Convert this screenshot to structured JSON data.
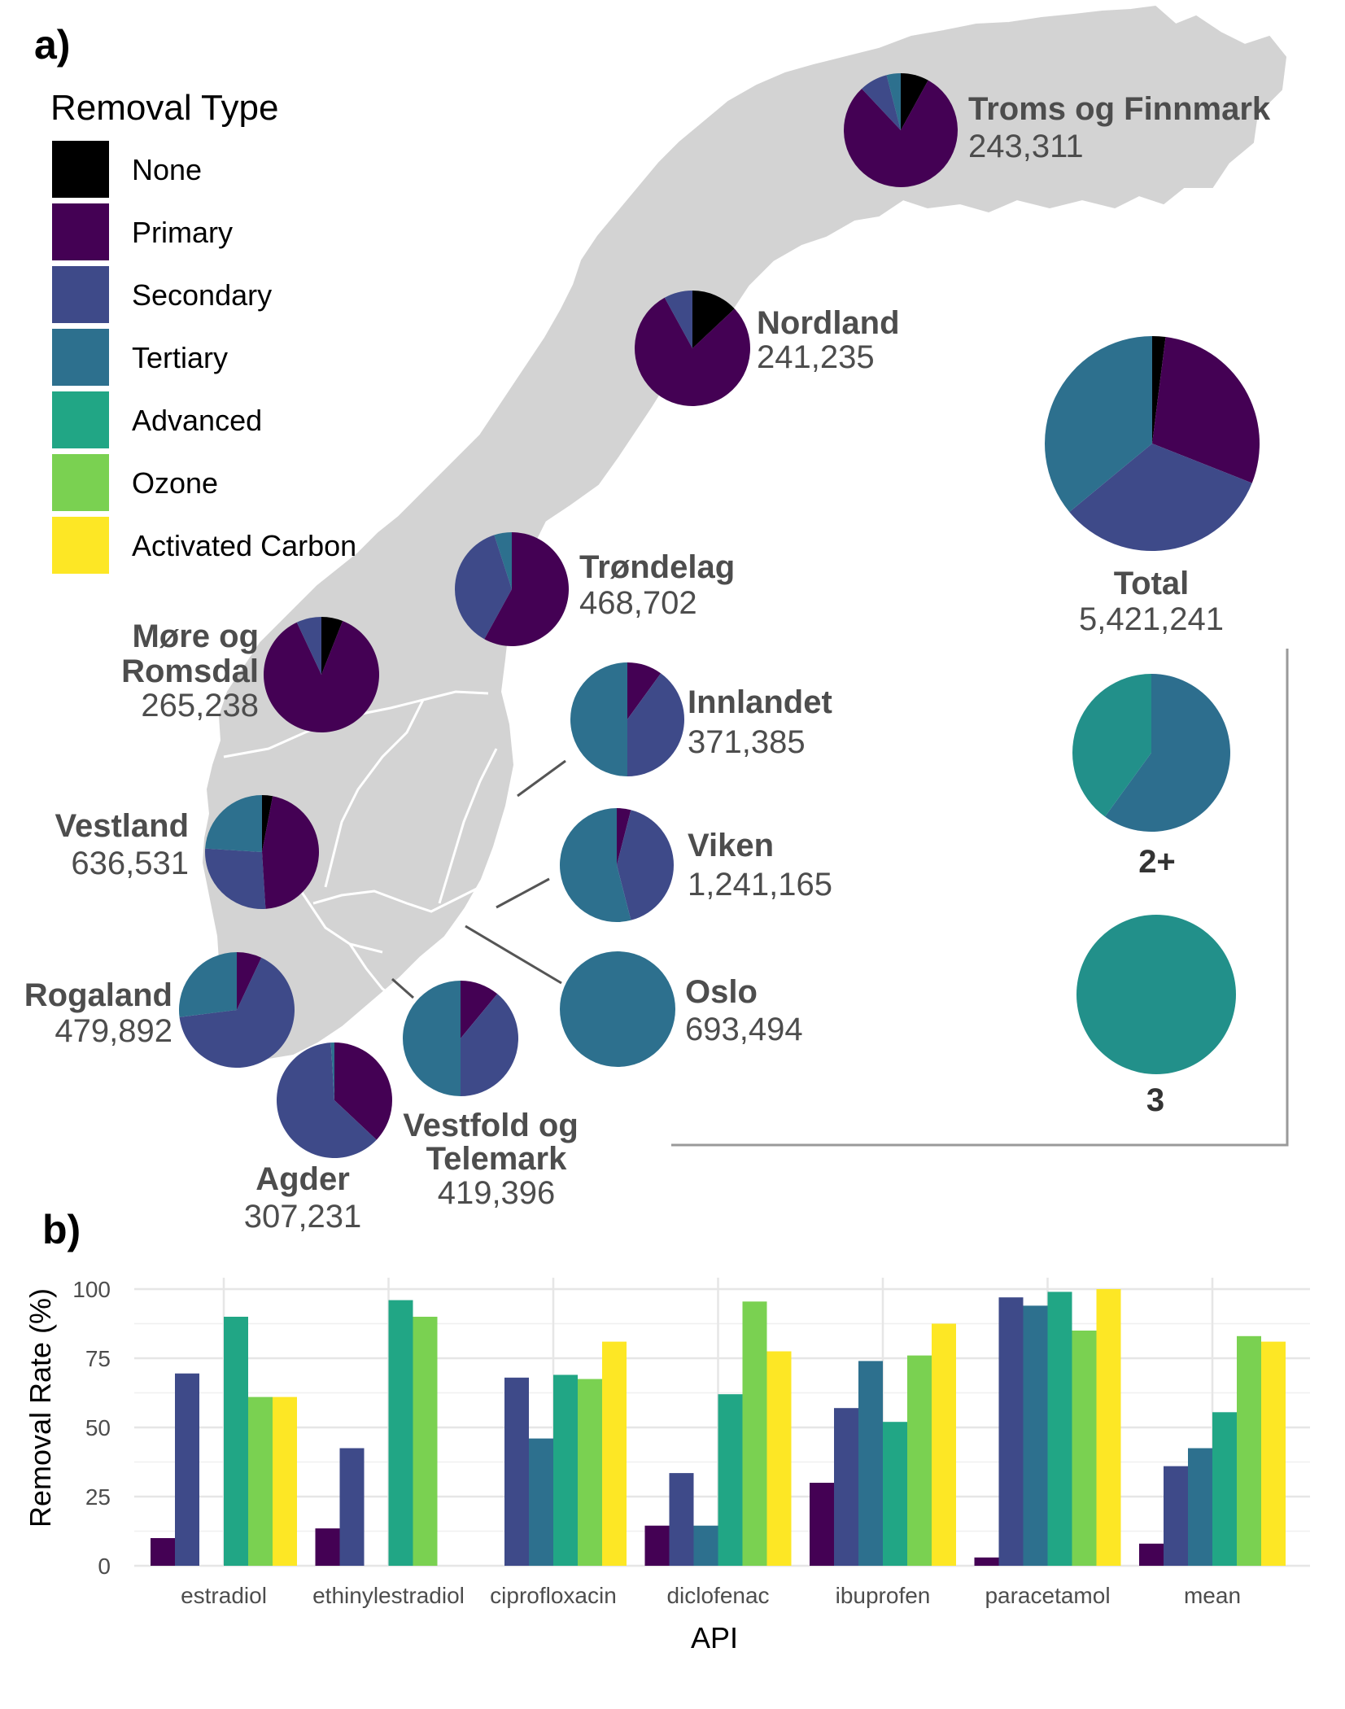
{
  "panel_a": {
    "label": "a)",
    "legend": {
      "title": "Removal Type",
      "items": [
        {
          "label": "None",
          "color": "#000000"
        },
        {
          "label": "Primary",
          "color": "#440154"
        },
        {
          "label": "Secondary",
          "color": "#3e4a89"
        },
        {
          "label": "Tertiary",
          "color": "#2d708e"
        },
        {
          "label": "Advanced",
          "color": "#21a685"
        },
        {
          "label": "Ozone",
          "color": "#7ad151"
        },
        {
          "label": "Activated Carbon",
          "color": "#fde725"
        }
      ]
    },
    "map_fill": "#d3d3d3",
    "regions": [
      {
        "name": "Troms og Finnmark",
        "population": "243,311",
        "shares": {
          "None": 0.08,
          "Primary": 0.8,
          "Secondary": 0.08,
          "Tertiary": 0.04
        }
      },
      {
        "name": "Nordland",
        "population": "241,235",
        "shares": {
          "None": 0.13,
          "Primary": 0.79,
          "Secondary": 0.08
        }
      },
      {
        "name": "Trøndelag",
        "population": "468,702",
        "shares": {
          "Primary": 0.58,
          "Secondary": 0.37,
          "Tertiary": 0.05
        }
      },
      {
        "name": "Møre og Romsdal",
        "population": "265,238",
        "shares": {
          "None": 0.06,
          "Primary": 0.87,
          "Secondary": 0.07
        }
      },
      {
        "name": "Innlandet",
        "population": "371,385",
        "shares": {
          "Primary": 0.1,
          "Secondary": 0.4,
          "Tertiary": 0.5
        }
      },
      {
        "name": "Vestland",
        "population": "636,531",
        "shares": {
          "None": 0.03,
          "Primary": 0.46,
          "Secondary": 0.27,
          "Tertiary": 0.24
        }
      },
      {
        "name": "Viken",
        "population": "1,241,165",
        "shares": {
          "Primary": 0.04,
          "Secondary": 0.42,
          "Tertiary": 0.54
        }
      },
      {
        "name": "Oslo",
        "population": "693,494",
        "shares": {
          "Tertiary": 1.0
        }
      },
      {
        "name": "Rogaland",
        "population": "479,892",
        "shares": {
          "Primary": 0.07,
          "Secondary": 0.66,
          "Tertiary": 0.27
        }
      },
      {
        "name": "Vestfold og Telemark",
        "population": "419,396",
        "shares": {
          "Primary": 0.11,
          "Secondary": 0.39,
          "Tertiary": 0.5
        }
      },
      {
        "name": "Agder",
        "population": "307,231",
        "shares": {
          "Primary": 0.37,
          "Secondary": 0.62,
          "Tertiary": 0.01
        }
      }
    ],
    "total": {
      "name": "Total",
      "population": "5,421,241",
      "shares": {
        "None": 0.02,
        "Primary": 0.29,
        "Secondary": 0.33,
        "Tertiary": 0.36
      }
    },
    "inset_pies": [
      {
        "label": "2+",
        "shares": {
          "Tertiary": 0.6,
          "Advanced": 0.4
        },
        "colors": {
          "Tertiary": "#2d6e8e",
          "Advanced": "#22908a"
        }
      },
      {
        "label": "3",
        "shares": {
          "Advanced": 1.0
        },
        "colors": {
          "Advanced": "#22908a"
        }
      }
    ]
  },
  "panel_b": {
    "label": "b)",
    "chart_data": {
      "type": "bar",
      "categories": [
        "estradiol",
        "ethinylestradiol",
        "ciprofloxacin",
        "diclofenac",
        "ibuprofen",
        "paracetamol",
        "mean"
      ],
      "series": [
        {
          "name": "Primary",
          "color": "#440154",
          "values": [
            10,
            13.5,
            null,
            14.5,
            30,
            3,
            8
          ]
        },
        {
          "name": "Secondary",
          "color": "#3e4a89",
          "values": [
            69.5,
            42.5,
            68,
            33.5,
            57,
            97,
            36
          ]
        },
        {
          "name": "Tertiary",
          "color": "#2d708e",
          "values": [
            null,
            null,
            46,
            14.5,
            74,
            94,
            42.5
          ]
        },
        {
          "name": "Advanced",
          "color": "#21a685",
          "values": [
            90,
            96,
            69,
            62,
            52,
            99,
            55.5
          ]
        },
        {
          "name": "Ozone",
          "color": "#7ad151",
          "values": [
            61,
            90,
            67.5,
            95.5,
            76,
            85,
            83
          ]
        },
        {
          "name": "Activated Carbon",
          "color": "#fde725",
          "values": [
            61,
            null,
            81,
            77.5,
            87.5,
            100,
            81
          ]
        }
      ],
      "xlabel": "API",
      "ylabel": "Removal Rate (%)",
      "ylim": [
        0,
        100
      ],
      "yticks": [
        0,
        25,
        50,
        75,
        100
      ],
      "grid": true
    }
  }
}
